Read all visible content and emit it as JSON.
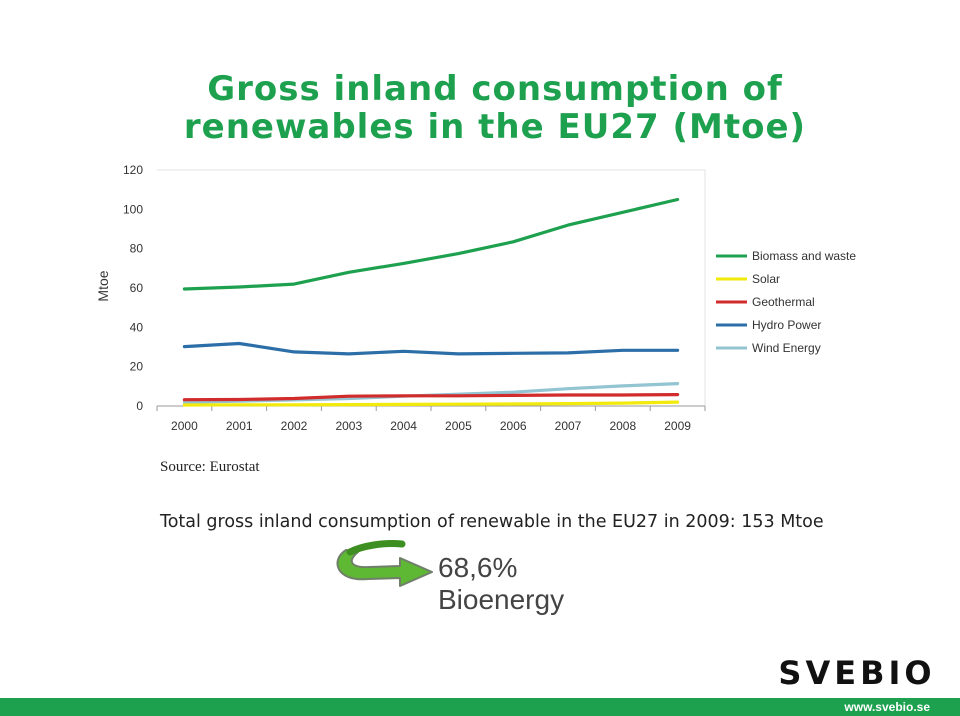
{
  "slide": {
    "title_line1": "Gross inland consumption of",
    "title_line2": "renewables in the EU27 (Mtoe)",
    "source": "Source: Eurostat",
    "total": "Total gross inland consumption of renewable in the EU27 in 2009: 153 Mtoe",
    "share_value": "68,6%",
    "share_label": "Bioenergy",
    "logo_text": "SVEBIO",
    "footer_url": "www.svebio.se"
  },
  "colors": {
    "title": "#1ea14f",
    "footer": "#1ea14f",
    "arrow": "#5fb833",
    "logo": "#111111"
  },
  "chart_data": {
    "type": "line",
    "title": "",
    "xlabel": "",
    "ylabel": "Mtoe",
    "ylim": [
      0,
      120
    ],
    "yticks": [
      0,
      20,
      40,
      60,
      80,
      100,
      120
    ],
    "categories": [
      "2000",
      "2001",
      "2002",
      "2003",
      "2004",
      "2005",
      "2006",
      "2007",
      "2008",
      "2009"
    ],
    "legend_position": "right",
    "series": [
      {
        "name": "Biomass and waste",
        "color": "#1ea14f",
        "values": [
          59.5,
          60.5,
          62,
          68,
          72.5,
          77.5,
          83.5,
          92,
          98.5,
          105
        ]
      },
      {
        "name": "Solar",
        "color": "#f2ea0a",
        "values": [
          0.5,
          0.6,
          0.6,
          0.7,
          0.8,
          0.9,
          1.0,
          1.2,
          1.5,
          2.0
        ]
      },
      {
        "name": "Geothermal",
        "color": "#d12b2b",
        "values": [
          3.2,
          3.3,
          3.8,
          5.0,
          5.2,
          5.2,
          5.4,
          5.6,
          5.6,
          5.8
        ]
      },
      {
        "name": "Hydro Power",
        "color": "#2c6fa8",
        "values": [
          30.2,
          31.8,
          27.5,
          26.5,
          27.8,
          26.5,
          26.8,
          27,
          28.3,
          28.3
        ]
      },
      {
        "name": "Wind Energy",
        "color": "#92c4d2",
        "values": [
          1.9,
          2.5,
          3.1,
          3.8,
          5.0,
          6.0,
          7.0,
          8.8,
          10.2,
          11.4
        ]
      }
    ]
  }
}
